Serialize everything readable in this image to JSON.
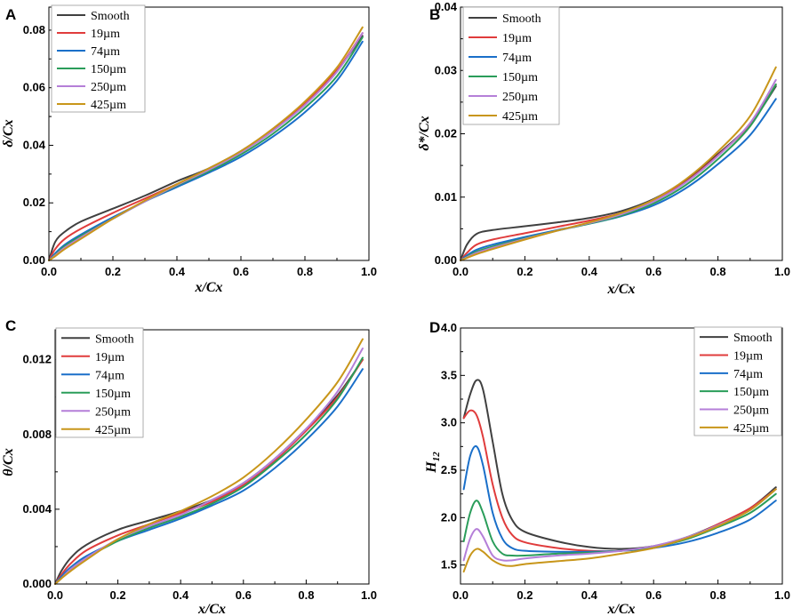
{
  "colors": {
    "Smooth": "#404040",
    "19um": "#e03c3c",
    "74um": "#1a6fc9",
    "150um": "#2a9d5a",
    "250um": "#b57fd8",
    "425um": "#c8961a"
  },
  "chart_data": [
    {
      "panel": "A",
      "type": "line",
      "xlabel": "x/Cx",
      "ylabel": "δ/Cx",
      "xlim": [
        0,
        1.0
      ],
      "ylim": [
        0,
        0.088
      ],
      "xticks": [
        "0.0",
        "0.2",
        "0.4",
        "0.6",
        "0.8",
        "1.0"
      ],
      "xtick_values": [
        0,
        0.2,
        0.4,
        0.6,
        0.8,
        1.0
      ],
      "yticks": [
        "0.00",
        "0.02",
        "0.04",
        "0.06",
        "0.08"
      ],
      "ytick_values": [
        0,
        0.02,
        0.04,
        0.06,
        0.08
      ],
      "legend_position": "top-left",
      "x": [
        0,
        0.02,
        0.05,
        0.1,
        0.2,
        0.3,
        0.4,
        0.5,
        0.6,
        0.7,
        0.8,
        0.9,
        0.98
      ],
      "series": [
        {
          "name": "Smooth",
          "color_key": "Smooth",
          "values": [
            0,
            0.0065,
            0.01,
            0.0135,
            0.018,
            0.0225,
            0.0275,
            0.032,
            0.038,
            0.0455,
            0.055,
            0.066,
            0.078
          ]
        },
        {
          "name": "19µm",
          "color_key": "19um",
          "values": [
            0,
            0.004,
            0.0075,
            0.011,
            0.0165,
            0.0215,
            0.0265,
            0.0315,
            0.0375,
            0.045,
            0.0545,
            0.066,
            0.079
          ]
        },
        {
          "name": "74µm",
          "color_key": "74um",
          "values": [
            0,
            0.0025,
            0.0055,
            0.009,
            0.015,
            0.0205,
            0.0255,
            0.0305,
            0.036,
            0.043,
            0.0515,
            0.0625,
            0.076
          ]
        },
        {
          "name": "150µm",
          "color_key": "150um",
          "values": [
            0,
            0.002,
            0.005,
            0.0085,
            0.0145,
            0.0205,
            0.026,
            0.031,
            0.0368,
            0.044,
            0.053,
            0.064,
            0.0775
          ]
        },
        {
          "name": "250µm",
          "color_key": "250um",
          "values": [
            0,
            0.0018,
            0.0045,
            0.008,
            0.0145,
            0.0205,
            0.0262,
            0.0315,
            0.0375,
            0.045,
            0.054,
            0.0655,
            0.079
          ]
        },
        {
          "name": "425µm",
          "color_key": "425um",
          "values": [
            0,
            0.0015,
            0.004,
            0.0075,
            0.0145,
            0.0208,
            0.0265,
            0.032,
            0.038,
            0.0458,
            0.0552,
            0.067,
            0.081
          ]
        }
      ]
    },
    {
      "panel": "B",
      "type": "line",
      "xlabel": "x/Cx",
      "ylabel": "δ*/Cx",
      "xlim": [
        0,
        1.0
      ],
      "ylim": [
        0,
        0.04
      ],
      "xticks": [
        "0.0",
        "0.2",
        "0.4",
        "0.6",
        "0.8",
        "1.0"
      ],
      "xtick_values": [
        0,
        0.2,
        0.4,
        0.6,
        0.8,
        1.0
      ],
      "yticks": [
        "0.00",
        "0.01",
        "0.02",
        "0.03",
        "0.04"
      ],
      "ytick_values": [
        0,
        0.01,
        0.02,
        0.03,
        0.04
      ],
      "legend_position": "top-left",
      "x": [
        0,
        0.02,
        0.05,
        0.1,
        0.2,
        0.3,
        0.4,
        0.5,
        0.6,
        0.7,
        0.8,
        0.9,
        0.98
      ],
      "series": [
        {
          "name": "Smooth",
          "color_key": "Smooth",
          "values": [
            0,
            0.0025,
            0.0042,
            0.0048,
            0.0054,
            0.006,
            0.0067,
            0.0078,
            0.0097,
            0.0127,
            0.0168,
            0.0215,
            0.0275
          ]
        },
        {
          "name": "19µm",
          "color_key": "19um",
          "values": [
            0,
            0.0012,
            0.0025,
            0.0033,
            0.0043,
            0.0053,
            0.0063,
            0.0075,
            0.0094,
            0.0124,
            0.0166,
            0.0215,
            0.0278
          ]
        },
        {
          "name": "74µm",
          "color_key": "74um",
          "values": [
            0,
            0.0008,
            0.0017,
            0.0025,
            0.0037,
            0.0048,
            0.0058,
            0.007,
            0.0087,
            0.0114,
            0.0152,
            0.0198,
            0.0255
          ]
        },
        {
          "name": "150µm",
          "color_key": "150um",
          "values": [
            0,
            0.0006,
            0.0014,
            0.0022,
            0.0035,
            0.0047,
            0.0058,
            0.0071,
            0.009,
            0.0119,
            0.016,
            0.0212,
            0.0278
          ]
        },
        {
          "name": "250µm",
          "color_key": "250um",
          "values": [
            0,
            0.0005,
            0.0012,
            0.002,
            0.0034,
            0.0047,
            0.0059,
            0.0073,
            0.0093,
            0.0123,
            0.0165,
            0.0217,
            0.0285
          ]
        },
        {
          "name": "425µm",
          "color_key": "425um",
          "values": [
            0,
            0.0004,
            0.001,
            0.0018,
            0.0033,
            0.0047,
            0.006,
            0.0075,
            0.0096,
            0.0128,
            0.0172,
            0.0228,
            0.0305
          ]
        }
      ]
    },
    {
      "panel": "C",
      "type": "line",
      "xlabel": "x/Cx",
      "ylabel": "θ/Cx",
      "xlim": [
        0,
        1.0
      ],
      "ylim": [
        0,
        0.0136
      ],
      "xticks": [
        "0.0",
        "0.2",
        "0.4",
        "0.6",
        "0.8",
        "1.0"
      ],
      "xtick_values": [
        0,
        0.2,
        0.4,
        0.6,
        0.8,
        1.0
      ],
      "yticks": [
        "0.000",
        "0.004",
        "0.008",
        "0.012"
      ],
      "ytick_values": [
        0,
        0.004,
        0.008,
        0.012
      ],
      "legend_position": "top-left",
      "x": [
        0,
        0.02,
        0.05,
        0.1,
        0.2,
        0.3,
        0.4,
        0.5,
        0.6,
        0.7,
        0.8,
        0.9,
        0.98
      ],
      "series": [
        {
          "name": "Smooth",
          "color_key": "Smooth",
          "values": [
            0,
            0.0007,
            0.0014,
            0.0021,
            0.0029,
            0.0034,
            0.0039,
            0.0045,
            0.0054,
            0.0067,
            0.0083,
            0.0101,
            0.012
          ]
        },
        {
          "name": "19µm",
          "color_key": "19um",
          "values": [
            0,
            0.0005,
            0.0011,
            0.0018,
            0.0026,
            0.0032,
            0.0038,
            0.0044,
            0.0053,
            0.0066,
            0.0082,
            0.01,
            0.012
          ]
        },
        {
          "name": "74µm",
          "color_key": "74um",
          "values": [
            0,
            0.0004,
            0.0009,
            0.0015,
            0.0023,
            0.0029,
            0.0035,
            0.0042,
            0.005,
            0.0062,
            0.0077,
            0.0095,
            0.0115
          ]
        },
        {
          "name": "150µm",
          "color_key": "150um",
          "values": [
            0,
            0.0003,
            0.0008,
            0.0014,
            0.0023,
            0.003,
            0.0036,
            0.0043,
            0.0052,
            0.0065,
            0.008,
            0.0099,
            0.0121
          ]
        },
        {
          "name": "250µm",
          "color_key": "250um",
          "values": [
            0,
            0.0003,
            0.0008,
            0.0014,
            0.0024,
            0.0031,
            0.0037,
            0.0045,
            0.0054,
            0.0067,
            0.0083,
            0.0103,
            0.0126
          ]
        },
        {
          "name": "425µm",
          "color_key": "425um",
          "values": [
            0,
            0.0003,
            0.0007,
            0.0013,
            0.0024,
            0.0032,
            0.0039,
            0.0047,
            0.0057,
            0.0071,
            0.0088,
            0.0108,
            0.0131
          ]
        }
      ]
    },
    {
      "panel": "D",
      "type": "line",
      "xlabel": "x/Cx",
      "ylabel": "H12",
      "ylabel_main": "H",
      "ylabel_sub": "12",
      "xlim": [
        0,
        1.0
      ],
      "ylim": [
        1.3,
        4.0
      ],
      "xticks": [
        "0.0",
        "0.2",
        "0.4",
        "0.6",
        "0.8",
        "1.0"
      ],
      "xtick_values": [
        0,
        0.2,
        0.4,
        0.6,
        0.8,
        1.0
      ],
      "yticks": [
        "1.5",
        "2.0",
        "2.5",
        "3.0",
        "3.5",
        "4.0"
      ],
      "ytick_values": [
        1.5,
        2.0,
        2.5,
        3.0,
        3.5,
        4.0
      ],
      "legend_position": "top-right",
      "x": [
        0.01,
        0.03,
        0.05,
        0.07,
        0.1,
        0.13,
        0.16,
        0.2,
        0.3,
        0.4,
        0.5,
        0.6,
        0.7,
        0.8,
        0.9,
        0.98
      ],
      "series": [
        {
          "name": "Smooth",
          "color_key": "Smooth",
          "values": [
            3.05,
            3.3,
            3.45,
            3.35,
            2.8,
            2.25,
            1.98,
            1.85,
            1.75,
            1.69,
            1.67,
            1.7,
            1.79,
            1.93,
            2.1,
            2.32
          ]
        },
        {
          "name": "19µm",
          "color_key": "19um",
          "values": [
            3.05,
            3.13,
            3.08,
            2.85,
            2.35,
            2.0,
            1.82,
            1.74,
            1.68,
            1.65,
            1.65,
            1.69,
            1.78,
            1.93,
            2.1,
            2.3
          ]
        },
        {
          "name": "74µm",
          "color_key": "74um",
          "values": [
            2.3,
            2.65,
            2.75,
            2.55,
            2.05,
            1.78,
            1.68,
            1.65,
            1.64,
            1.64,
            1.65,
            1.68,
            1.74,
            1.84,
            1.98,
            2.18
          ]
        },
        {
          "name": "150µm",
          "color_key": "150um",
          "values": [
            1.75,
            2.05,
            2.18,
            2.05,
            1.75,
            1.62,
            1.6,
            1.6,
            1.62,
            1.63,
            1.65,
            1.69,
            1.77,
            1.9,
            2.05,
            2.25
          ]
        },
        {
          "name": "250µm",
          "color_key": "250um",
          "values": [
            1.55,
            1.78,
            1.88,
            1.8,
            1.6,
            1.55,
            1.55,
            1.57,
            1.6,
            1.62,
            1.65,
            1.7,
            1.79,
            1.92,
            2.08,
            2.3
          ]
        },
        {
          "name": "425µm",
          "color_key": "425um",
          "values": [
            1.43,
            1.6,
            1.67,
            1.64,
            1.55,
            1.5,
            1.49,
            1.51,
            1.54,
            1.57,
            1.62,
            1.68,
            1.78,
            1.91,
            2.08,
            2.3
          ]
        }
      ]
    }
  ],
  "legend_labels": [
    "Smooth",
    "19µm",
    "74µm",
    "150µm",
    "250µm",
    "425µm"
  ]
}
